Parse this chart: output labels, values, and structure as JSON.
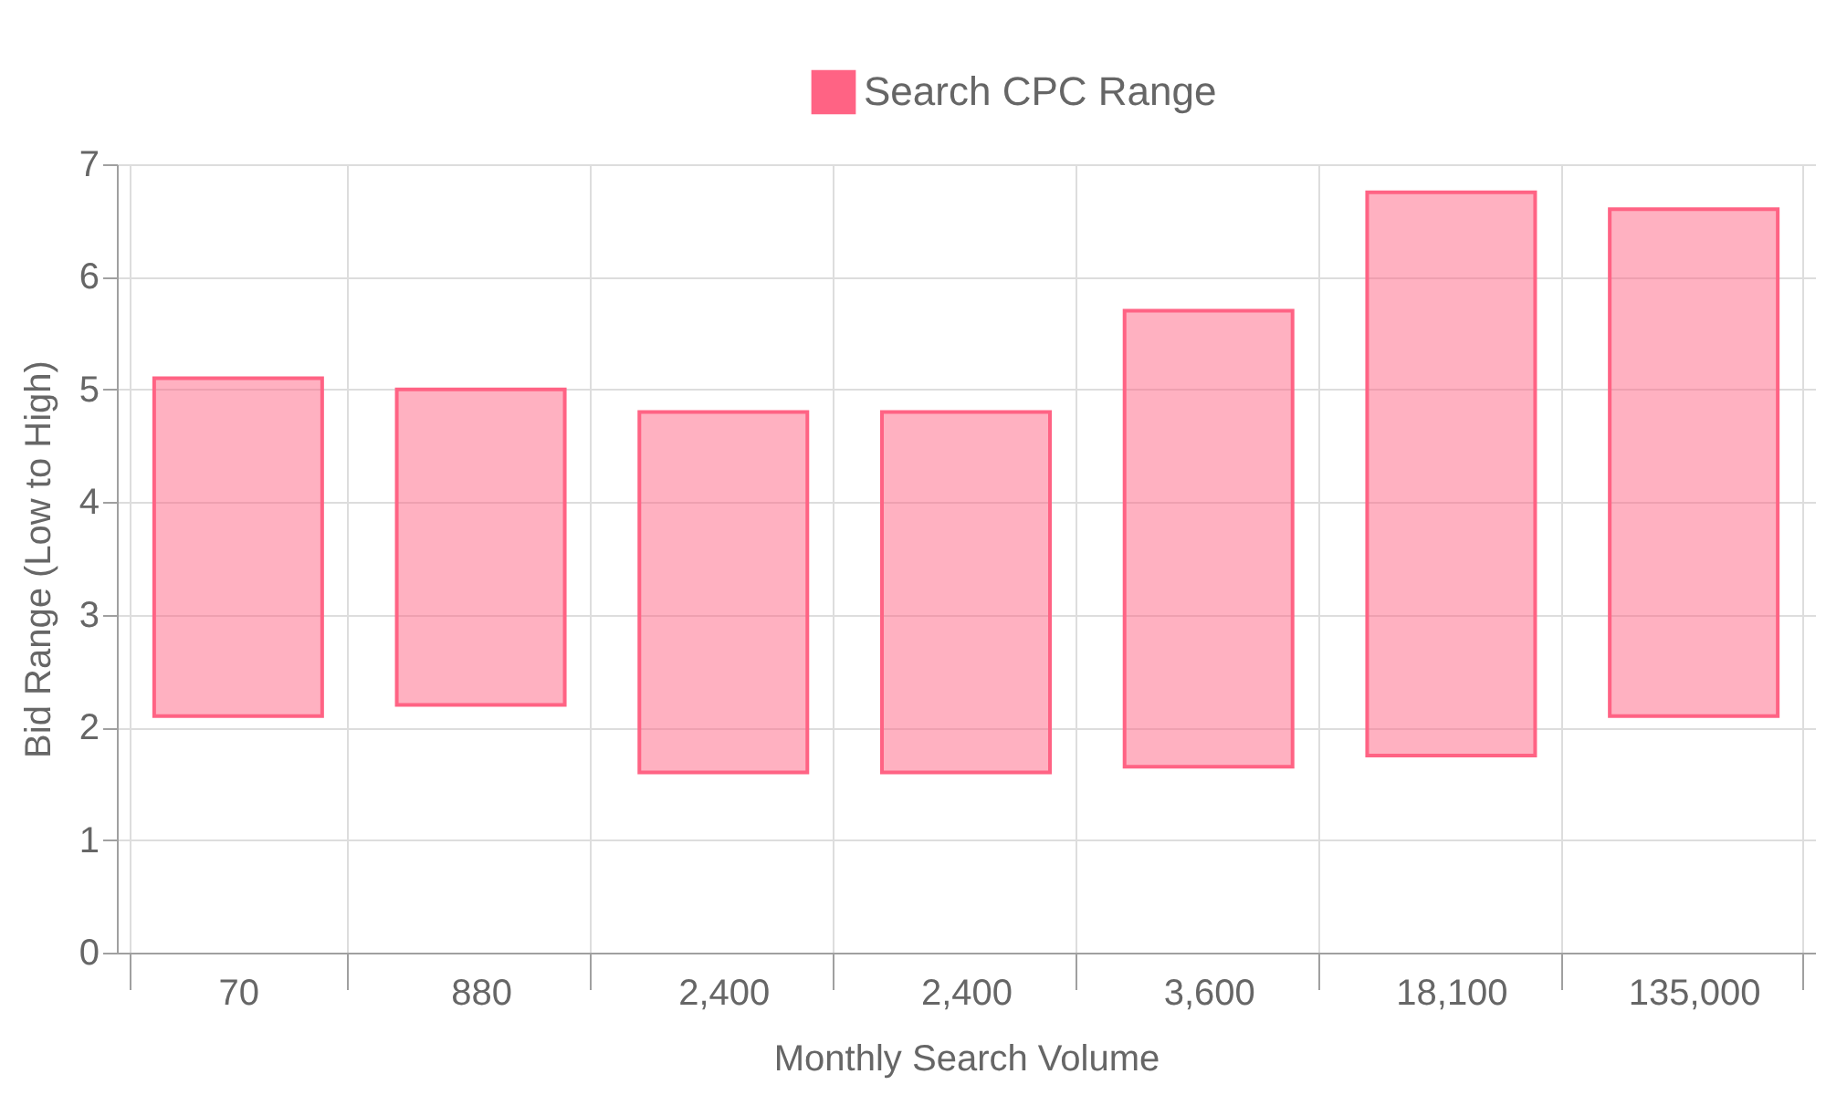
{
  "chart_data": {
    "type": "bar",
    "xlabel": "Monthly Search Volume",
    "ylabel": "Bid Range (Low to High)",
    "categories": [
      "70",
      "880",
      "2,400",
      "2,400",
      "3,600",
      "18,100",
      "135,000"
    ],
    "series": [
      {
        "name": "Search CPC Range",
        "color": "#ff6384",
        "values": [
          3.0,
          2.8,
          3.2,
          3.2,
          4.05,
          5.0,
          4.5
        ],
        "base": [
          2.1,
          2.2,
          1.6,
          1.6,
          1.65,
          1.75,
          2.1
        ]
      }
    ],
    "ylim": [
      0,
      7
    ],
    "yticks": [
      0,
      1,
      2,
      3,
      4,
      5,
      6,
      7
    ],
    "grid": true,
    "legend": "top"
  }
}
